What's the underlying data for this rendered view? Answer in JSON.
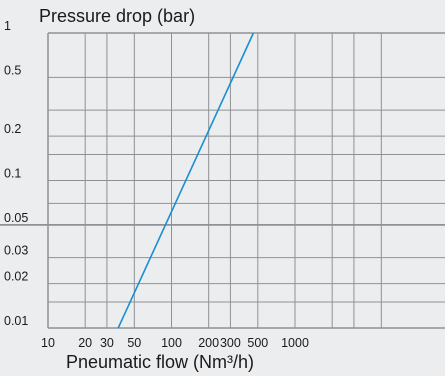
{
  "chart_data": {
    "type": "line",
    "title": "Pressure drop (bar)",
    "xlabel": "Pneumatic flow (Nm³/h)",
    "ylabel": "Pressure drop (bar)",
    "x_scale": "log",
    "y_scale": "log",
    "xlim": [
      10,
      3000
    ],
    "ylim": [
      0.01,
      1
    ],
    "x_ticks": [
      10,
      20,
      30,
      50,
      100,
      200,
      300,
      500,
      1000
    ],
    "x_tick_labels": [
      "10",
      "20",
      "30",
      "50",
      "100",
      "200",
      "300",
      "500",
      "1000"
    ],
    "y_ticks": [
      1,
      0.5,
      0.2,
      0.1,
      0.05,
      0.03,
      0.02,
      0.01
    ],
    "y_tick_labels": [
      "1",
      "0.5",
      "0.2",
      "0.1",
      "0.05",
      "0.03",
      "0.02",
      "0.01"
    ],
    "grid": true,
    "series": [
      {
        "x": [
          37,
          460
        ],
        "y": [
          0.01,
          1
        ]
      }
    ],
    "colors": {
      "line": "#1a8fd1",
      "grid": "#8e9296",
      "background": "#ecedee"
    }
  }
}
